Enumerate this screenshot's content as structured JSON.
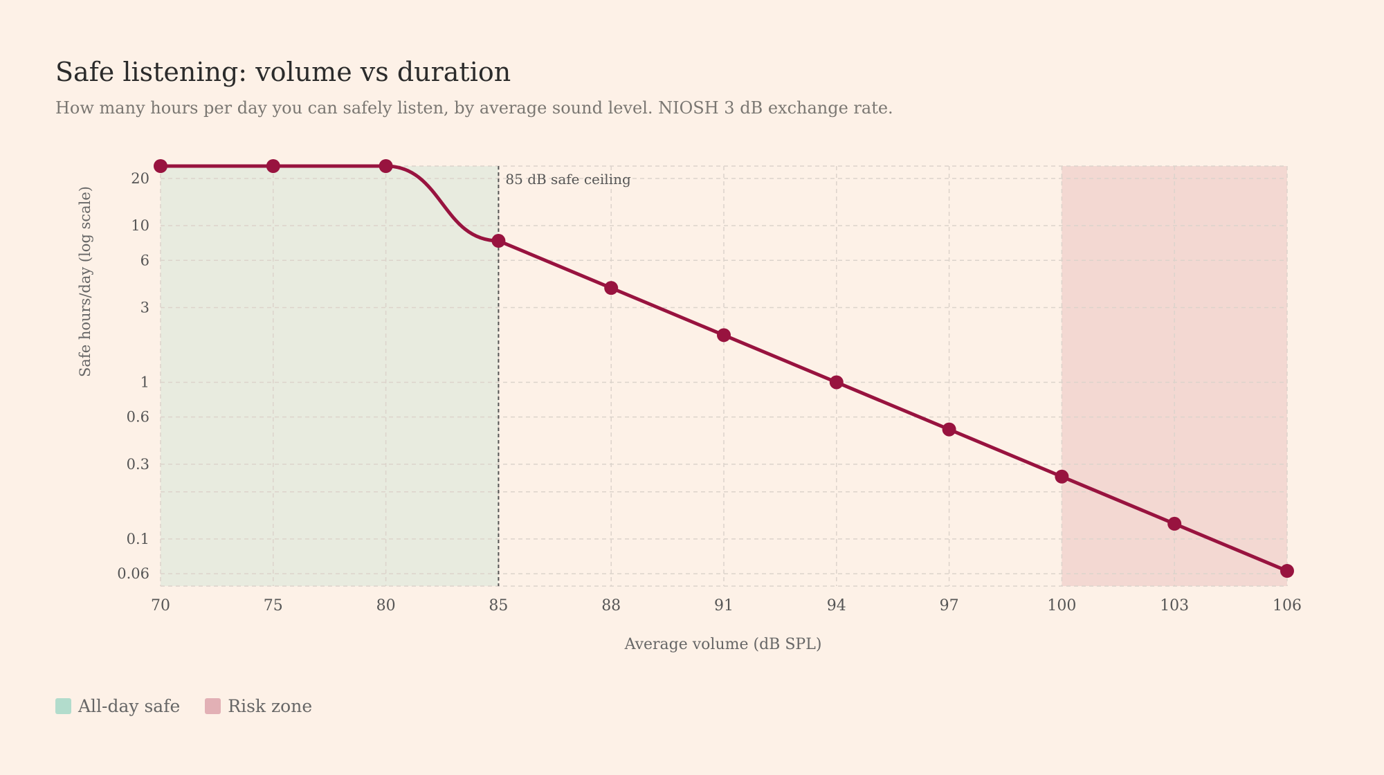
{
  "header": {
    "title": "Safe listening: volume vs duration",
    "subtitle": "How many hours per day you can safely listen, by average sound level. NIOSH 3 dB exchange rate."
  },
  "legend": {
    "items": [
      {
        "label": "All-day safe",
        "color": "#b2dccc"
      },
      {
        "label": "Risk zone",
        "color": "#e2b0b5"
      }
    ]
  },
  "colors": {
    "background": "#fdf1e7",
    "line": "#98133f",
    "safe_band": "#e8ebdf",
    "risk_band": "#f3d8d2",
    "grid": "#dcd3cb",
    "ceiling": "#555555"
  },
  "chart_data": {
    "type": "line",
    "xlabel": "Average volume (dB SPL)",
    "ylabel": "Safe hours/day (log scale)",
    "x_ticks": [
      70,
      75,
      80,
      85,
      88,
      91,
      94,
      97,
      100,
      103,
      106
    ],
    "y_ticks": [
      20,
      10,
      6,
      3,
      1,
      0.6,
      0.3,
      0.1,
      0.06
    ],
    "y_scale": "log",
    "xlim": [
      70,
      106
    ],
    "ylim": [
      0.05,
      24
    ],
    "grid": true,
    "series": [
      {
        "x": [
          70,
          75,
          80,
          85,
          88,
          91,
          94,
          97,
          100,
          103,
          106
        ],
        "y": [
          24,
          24,
          24,
          8,
          4,
          2,
          1,
          0.5,
          0.25,
          0.125,
          0.0625
        ]
      }
    ],
    "regions": [
      {
        "label": "All-day safe",
        "from": 70,
        "to": 85
      },
      {
        "label": "Risk zone",
        "from": 100,
        "to": 106
      }
    ],
    "annotations": [
      {
        "x": 85,
        "text": "85 dB safe ceiling"
      }
    ]
  }
}
